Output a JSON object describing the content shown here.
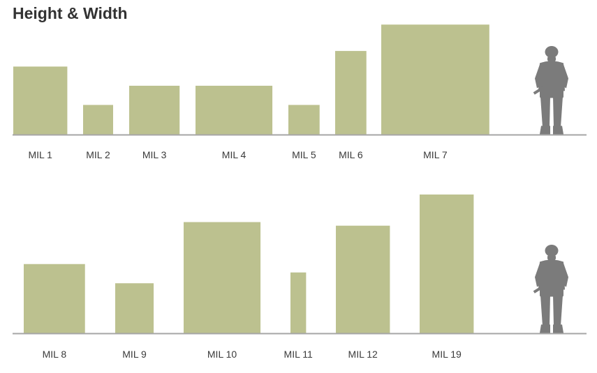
{
  "title": "Height & Width",
  "colors": {
    "bar": "#bcc18f",
    "baseline": "#a6a6a6",
    "figure": "#7b7b7b",
    "text": "#333333"
  },
  "icons": [
    "soldier-silhouette-icon",
    "soldier-silhouette-icon"
  ],
  "chart_data": [
    {
      "type": "bar",
      "bar_shape": "variable-width",
      "series": [
        {
          "name": "MIL 1",
          "height": 0.57,
          "width": 0.45
        },
        {
          "name": "MIL 2",
          "height": 0.25,
          "width": 0.25
        },
        {
          "name": "MIL 3",
          "height": 0.41,
          "width": 0.42
        },
        {
          "name": "MIL 4",
          "height": 0.41,
          "width": 0.64
        },
        {
          "name": "MIL 5",
          "height": 0.25,
          "width": 0.26
        },
        {
          "name": "MIL 6",
          "height": 0.7,
          "width": 0.26
        },
        {
          "name": "MIL 7",
          "height": 0.92,
          "width": 0.9
        }
      ],
      "reference": "soldier-silhouette-icon"
    },
    {
      "type": "bar",
      "bar_shape": "variable-width",
      "series": [
        {
          "name": "MIL 8",
          "height": 0.58,
          "width": 0.51
        },
        {
          "name": "MIL 9",
          "height": 0.42,
          "width": 0.32
        },
        {
          "name": "MIL 10",
          "height": 0.93,
          "width": 0.64
        },
        {
          "name": "MIL 11",
          "height": 0.51,
          "width": 0.13
        },
        {
          "name": "MIL 12",
          "height": 0.9,
          "width": 0.45
        },
        {
          "name": "MIL 19",
          "height": 1.16,
          "width": 0.45
        }
      ],
      "reference": "soldier-silhouette-icon"
    }
  ]
}
